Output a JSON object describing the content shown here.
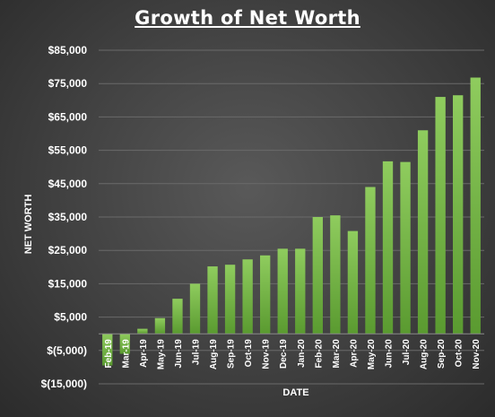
{
  "chart_data": {
    "type": "bar",
    "title": "Growth of Net Worth",
    "xlabel": "DATE",
    "ylabel": "NET WORTH",
    "categories": [
      "Feb-19",
      "Mar-19",
      "Apr-19",
      "May-19",
      "Jun-19",
      "Jul-19",
      "Aug-19",
      "Sep-19",
      "Oct-19",
      "Nov-19",
      "Dec-19",
      "Jan-20",
      "Feb-20",
      "Mar-20",
      "Apr-20",
      "May-20",
      "Jun-20",
      "Jul-20",
      "Aug-20",
      "Sep-20",
      "Oct-20",
      "Nov-20"
    ],
    "values": [
      -9500,
      -6000,
      1500,
      4700,
      10500,
      15000,
      20200,
      20700,
      22300,
      23500,
      25500,
      25500,
      35000,
      35500,
      30800,
      44000,
      51700,
      51500,
      61000,
      71000,
      71500,
      76800
    ],
    "ylim": [
      -15000,
      85000
    ],
    "yticks": [
      -15000,
      -5000,
      5000,
      15000,
      25000,
      35000,
      45000,
      55000,
      65000,
      75000,
      85000
    ],
    "ytick_labels": [
      "$(15,000)",
      "$(5,000)",
      "$5,000",
      "$15,000",
      "$25,000",
      "$35,000",
      "$45,000",
      "$55,000",
      "$65,000",
      "$75,000",
      "$85,000"
    ],
    "grid": true,
    "legend": "none",
    "colors": {
      "bar_top": "#8fcc5e",
      "bar_bottom": "#5a9a30",
      "gridline": "#6a6a6a",
      "axis": "#8a8a8a"
    }
  }
}
